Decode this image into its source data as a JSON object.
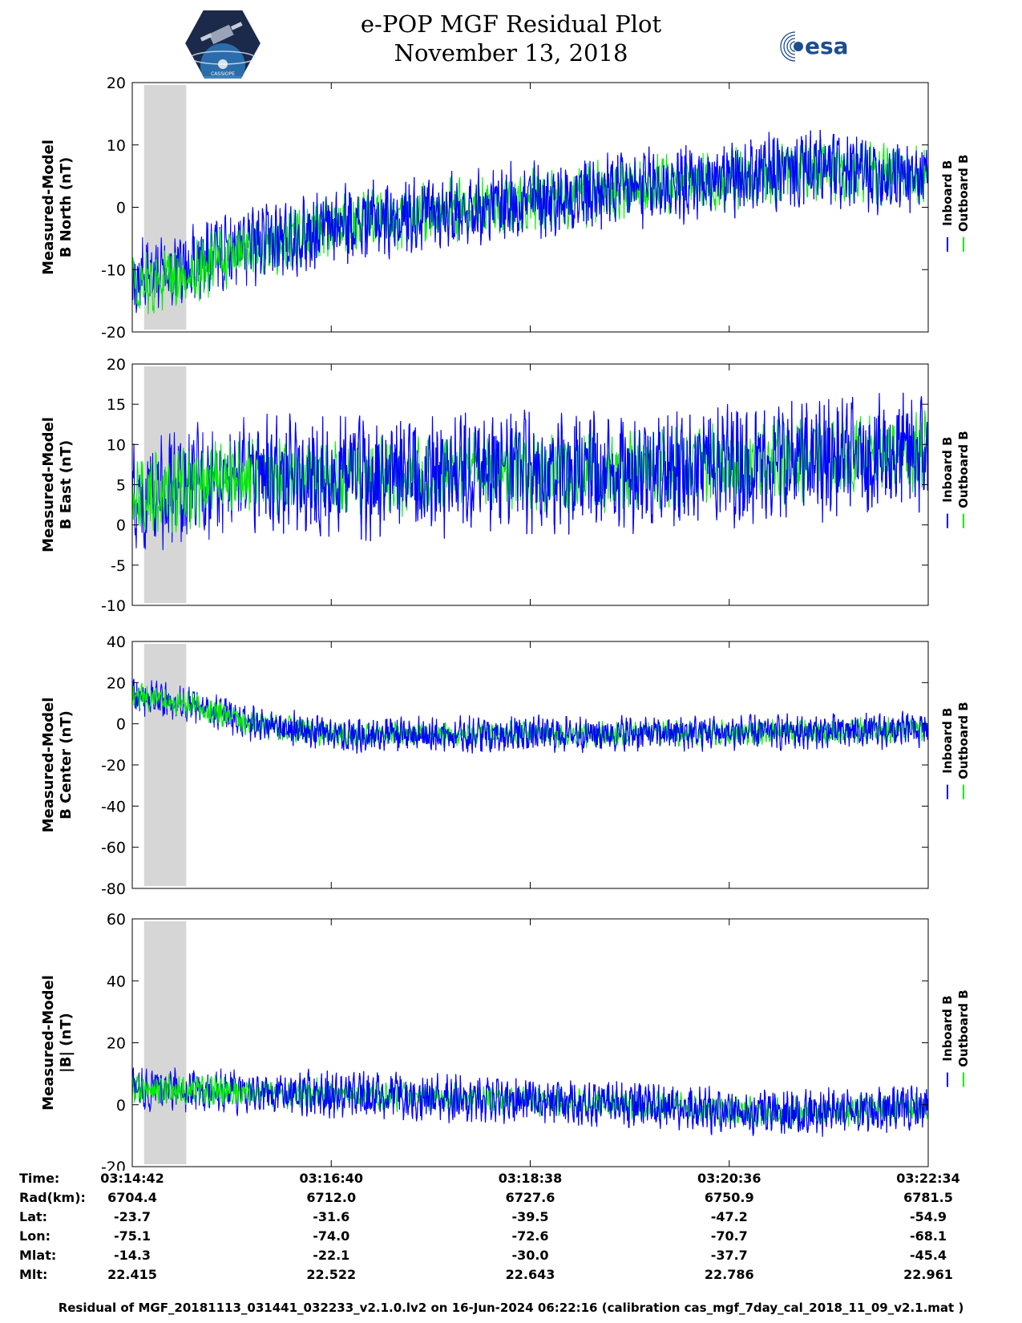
{
  "header": {
    "title": "e-POP MGF Residual Plot",
    "subtitle": "November 13, 2018",
    "logo_right_text": "esa",
    "logo_left_caption": "CASSIOPE"
  },
  "colors": {
    "inboard": "#0000ff",
    "outboard": "#00ee00",
    "shade": "#d6d6d6"
  },
  "chart_data": [
    {
      "type": "line",
      "ylabel_line1": "Measured-Model",
      "ylabel_line2": "B North (nT)",
      "ylim": [
        -20,
        20
      ],
      "yticks": [
        20,
        10,
        0,
        -10,
        -20
      ],
      "legend": [
        "Inboard B",
        "Outboard B"
      ],
      "legend_placement": "right",
      "x_range_s": [
        0,
        472
      ],
      "shaded_x_s": [
        7,
        32
      ],
      "series": [
        {
          "name": "Inboard B",
          "trend": [
            [
              0,
              -12
            ],
            [
              60,
              -7
            ],
            [
              120,
              -3
            ],
            [
              200,
              0
            ],
            [
              300,
              3
            ],
            [
              400,
              6
            ],
            [
              472,
              5
            ]
          ],
          "amplitude": 5
        },
        {
          "name": "Outboard B",
          "trend": [
            [
              0,
              -13
            ],
            [
              60,
              -8
            ],
            [
              120,
              -3
            ],
            [
              200,
              0
            ],
            [
              300,
              3
            ],
            [
              400,
              6
            ],
            [
              472,
              5
            ]
          ],
          "amplitude": 4
        }
      ]
    },
    {
      "type": "line",
      "ylabel_line1": "Measured-Model",
      "ylabel_line2": "B East (nT)",
      "ylim": [
        -10,
        20
      ],
      "yticks": [
        20,
        15,
        10,
        5,
        0,
        -5,
        -10
      ],
      "legend": [
        "Inboard B",
        "Outboard B"
      ],
      "legend_placement": "right",
      "x_range_s": [
        0,
        472
      ],
      "shaded_x_s": [
        7,
        32
      ],
      "series": [
        {
          "name": "Inboard B",
          "trend": [
            [
              0,
              3
            ],
            [
              60,
              6
            ],
            [
              150,
              6
            ],
            [
              300,
              7
            ],
            [
              400,
              8
            ],
            [
              472,
              9
            ]
          ],
          "amplitude": 6
        },
        {
          "name": "Outboard B",
          "trend": [
            [
              0,
              3
            ],
            [
              60,
              6
            ],
            [
              150,
              6
            ],
            [
              300,
              7
            ],
            [
              400,
              8
            ],
            [
              472,
              9
            ]
          ],
          "amplitude": 4
        }
      ]
    },
    {
      "type": "line",
      "ylabel_line1": "Measured-Model",
      "ylabel_line2": "B Center (nT)",
      "ylim": [
        -80,
        40
      ],
      "yticks": [
        40,
        20,
        0,
        -20,
        -40,
        -60,
        -80
      ],
      "legend": [
        "Inboard B",
        "Outboard B"
      ],
      "legend_placement": "right",
      "x_range_s": [
        0,
        472
      ],
      "shaded_x_s": [
        7,
        32
      ],
      "series": [
        {
          "name": "Inboard B",
          "trend": [
            [
              0,
              14
            ],
            [
              40,
              8
            ],
            [
              70,
              0
            ],
            [
              120,
              -5
            ],
            [
              250,
              -5
            ],
            [
              400,
              -4
            ],
            [
              472,
              -3
            ]
          ],
          "amplitude": 7
        },
        {
          "name": "Outboard B",
          "trend": [
            [
              0,
              14
            ],
            [
              40,
              8
            ],
            [
              70,
              0
            ],
            [
              120,
              -5
            ],
            [
              250,
              -5
            ],
            [
              400,
              -4
            ],
            [
              472,
              -3
            ]
          ],
          "amplitude": 5
        }
      ]
    },
    {
      "type": "line",
      "ylabel_line1": "Measured-Model",
      "ylabel_line2": "|B| (nT)",
      "ylim": [
        -20,
        60
      ],
      "yticks": [
        60,
        40,
        20,
        0,
        -20
      ],
      "legend": [
        "Inboard B",
        "Outboard B"
      ],
      "legend_placement": "right",
      "x_range_s": [
        0,
        472
      ],
      "shaded_x_s": [
        7,
        32
      ],
      "series": [
        {
          "name": "Inboard B",
          "trend": [
            [
              0,
              5
            ],
            [
              80,
              4
            ],
            [
              200,
              2
            ],
            [
              300,
              0
            ],
            [
              380,
              -3
            ],
            [
              472,
              -1
            ]
          ],
          "amplitude": 6
        },
        {
          "name": "Outboard B",
          "trend": [
            [
              0,
              5
            ],
            [
              80,
              4
            ],
            [
              200,
              2
            ],
            [
              300,
              0
            ],
            [
              380,
              -3
            ],
            [
              472,
              -1
            ]
          ],
          "amplitude": 4
        }
      ]
    }
  ],
  "x_axis": {
    "row_labels": [
      "Time:",
      "Rad(km):",
      "Lat:",
      "Lon:",
      "Mlat:",
      "Mlt:"
    ],
    "columns": [
      {
        "time": "03:14:42",
        "rad": "6704.4",
        "lat": "-23.7",
        "lon": "-75.1",
        "mlat": "-14.3",
        "mlt": "22.415"
      },
      {
        "time": "03:16:40",
        "rad": "6712.0",
        "lat": "-31.6",
        "lon": "-74.0",
        "mlat": "-22.1",
        "mlt": "22.522"
      },
      {
        "time": "03:18:38",
        "rad": "6727.6",
        "lat": "-39.5",
        "lon": "-72.6",
        "mlat": "-30.0",
        "mlt": "22.643"
      },
      {
        "time": "03:20:36",
        "rad": "6750.9",
        "lat": "-47.2",
        "lon": "-70.7",
        "mlat": "-37.7",
        "mlt": "22.786"
      },
      {
        "time": "03:22:34",
        "rad": "6781.5",
        "lat": "-54.9",
        "lon": "-68.1",
        "mlat": "-45.4",
        "mlt": "22.961"
      }
    ]
  },
  "footer": "Residual of MGF_20181113_031441_032233_v2.1.0.lv2 on 16-Jun-2024 06:22:16 (calibration cas_mgf_7day_cal_2018_11_09_v2.1.mat )"
}
